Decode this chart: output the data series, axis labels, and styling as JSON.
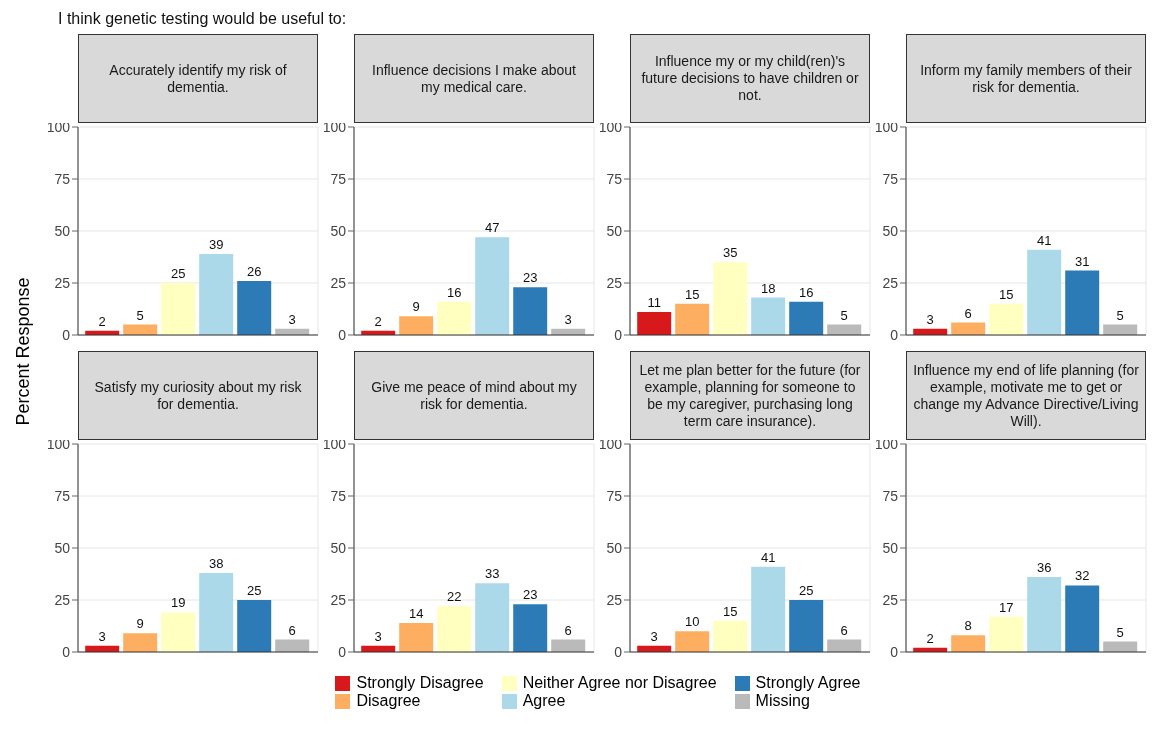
{
  "chart_data": [
    {
      "type": "bar",
      "title": "Accurately identify my risk of dementia.",
      "annotations": [
        "I think genetic testing would be useful to:"
      ],
      "ylabel": "Percent Response",
      "categories": [
        null
      ],
      "ylim": [
        0,
        100
      ],
      "yticks": [
        0,
        25,
        50,
        75,
        100
      ],
      "grid": true,
      "data_labels": true,
      "tick_labels": "y",
      "legend": "bottom",
      "series": [
        {
          "name": "Strongly Disagree",
          "color": "#d7191c",
          "values": [
            2
          ]
        },
        {
          "name": "Disagree",
          "color": "#fdae61",
          "values": [
            5
          ]
        },
        {
          "name": "Neither Agree nor Disagree",
          "color": "#ffffbf",
          "values": [
            25
          ]
        },
        {
          "name": "Agree",
          "color": "#abd9e9",
          "values": [
            39
          ]
        },
        {
          "name": "Strongly Agree",
          "color": "#2c7bb6",
          "values": [
            26
          ]
        },
        {
          "name": "Missing",
          "color": "#bababa",
          "values": [
            3
          ]
        }
      ]
    },
    {
      "type": "bar",
      "title": "Influence decisions I make about my medical care.",
      "categories": [
        null
      ],
      "ylim": [
        0,
        100
      ],
      "yticks": [
        0,
        25,
        50,
        75,
        100
      ],
      "grid": true,
      "data_labels": true,
      "tick_labels": "y",
      "series": [
        {
          "color": "#d7191c",
          "values": [
            2
          ]
        },
        {
          "color": "#fdae61",
          "values": [
            9
          ]
        },
        {
          "color": "#ffffbf",
          "values": [
            16
          ]
        },
        {
          "color": "#abd9e9",
          "values": [
            47
          ]
        },
        {
          "color": "#2c7bb6",
          "values": [
            23
          ]
        },
        {
          "color": "#bababa",
          "values": [
            3
          ]
        }
      ]
    },
    {
      "type": "bar",
      "title": "Influence my or my child(ren)'s future decisions to have children or not.",
      "categories": [
        null
      ],
      "ylim": [
        0,
        100
      ],
      "yticks": [
        0,
        25,
        50,
        75,
        100
      ],
      "grid": true,
      "data_labels": true,
      "tick_labels": "y",
      "series": [
        {
          "color": "#d7191c",
          "values": [
            11
          ]
        },
        {
          "color": "#fdae61",
          "values": [
            15
          ]
        },
        {
          "color": "#ffffbf",
          "values": [
            35
          ]
        },
        {
          "color": "#abd9e9",
          "values": [
            18
          ]
        },
        {
          "color": "#2c7bb6",
          "values": [
            16
          ]
        },
        {
          "color": "#bababa",
          "values": [
            5
          ]
        }
      ]
    },
    {
      "type": "bar",
      "title": "Inform my family members of their risk for dementia.",
      "categories": [
        null
      ],
      "ylim": [
        0,
        100
      ],
      "yticks": [
        0,
        25,
        50,
        75,
        100
      ],
      "grid": true,
      "data_labels": true,
      "tick_labels": "y",
      "series": [
        {
          "color": "#d7191c",
          "values": [
            3
          ]
        },
        {
          "color": "#fdae61",
          "values": [
            6
          ]
        },
        {
          "color": "#ffffbf",
          "values": [
            15
          ]
        },
        {
          "color": "#abd9e9",
          "values": [
            41
          ]
        },
        {
          "color": "#2c7bb6",
          "values": [
            31
          ]
        },
        {
          "color": "#bababa",
          "values": [
            5
          ]
        }
      ]
    },
    {
      "type": "bar",
      "title": "Satisfy my curiosity about my risk for dementia.",
      "categories": [
        null
      ],
      "ylim": [
        0,
        100
      ],
      "yticks": [
        0,
        25,
        50,
        75,
        100
      ],
      "grid": true,
      "data_labels": true,
      "tick_labels": "y",
      "series": [
        {
          "color": "#d7191c",
          "values": [
            3
          ]
        },
        {
          "color": "#fdae61",
          "values": [
            9
          ]
        },
        {
          "color": "#ffffbf",
          "values": [
            19
          ]
        },
        {
          "color": "#abd9e9",
          "values": [
            38
          ]
        },
        {
          "color": "#2c7bb6",
          "values": [
            25
          ]
        },
        {
          "color": "#bababa",
          "values": [
            6
          ]
        }
      ]
    },
    {
      "type": "bar",
      "title": "Give me peace of mind about my risk for dementia.",
      "categories": [
        null
      ],
      "ylim": [
        0,
        100
      ],
      "yticks": [
        0,
        25,
        50,
        75,
        100
      ],
      "grid": true,
      "data_labels": true,
      "tick_labels": "y",
      "series": [
        {
          "color": "#d7191c",
          "values": [
            3
          ]
        },
        {
          "color": "#fdae61",
          "values": [
            14
          ]
        },
        {
          "color": "#ffffbf",
          "values": [
            22
          ]
        },
        {
          "color": "#abd9e9",
          "values": [
            33
          ]
        },
        {
          "color": "#2c7bb6",
          "values": [
            23
          ]
        },
        {
          "color": "#bababa",
          "values": [
            6
          ]
        }
      ]
    },
    {
      "type": "bar",
      "title": "Let me plan better for the future (for example, planning for someone to be my caregiver, purchasing long term care insurance).",
      "categories": [
        null
      ],
      "ylim": [
        0,
        100
      ],
      "yticks": [
        0,
        25,
        50,
        75,
        100
      ],
      "grid": true,
      "data_labels": true,
      "tick_labels": "y",
      "series": [
        {
          "color": "#d7191c",
          "values": [
            3
          ]
        },
        {
          "color": "#fdae61",
          "values": [
            10
          ]
        },
        {
          "color": "#ffffbf",
          "values": [
            15
          ]
        },
        {
          "color": "#abd9e9",
          "values": [
            41
          ]
        },
        {
          "color": "#2c7bb6",
          "values": [
            25
          ]
        },
        {
          "color": "#bababa",
          "values": [
            6
          ]
        }
      ]
    },
    {
      "type": "bar",
      "title": "Influence my end of life planning (for example, motivate me to get or change my Advance Directive/Living Will).",
      "categories": [
        null
      ],
      "ylim": [
        0,
        100
      ],
      "yticks": [
        0,
        25,
        50,
        75,
        100
      ],
      "grid": true,
      "data_labels": true,
      "tick_labels": "y",
      "series": [
        {
          "color": "#d7191c",
          "values": [
            2
          ]
        },
        {
          "color": "#fdae61",
          "values": [
            8
          ]
        },
        {
          "color": "#ffffbf",
          "values": [
            17
          ]
        },
        {
          "color": "#abd9e9",
          "values": [
            36
          ]
        },
        {
          "color": "#2c7bb6",
          "values": [
            32
          ]
        },
        {
          "color": "#bababa",
          "values": [
            5
          ]
        }
      ]
    }
  ]
}
